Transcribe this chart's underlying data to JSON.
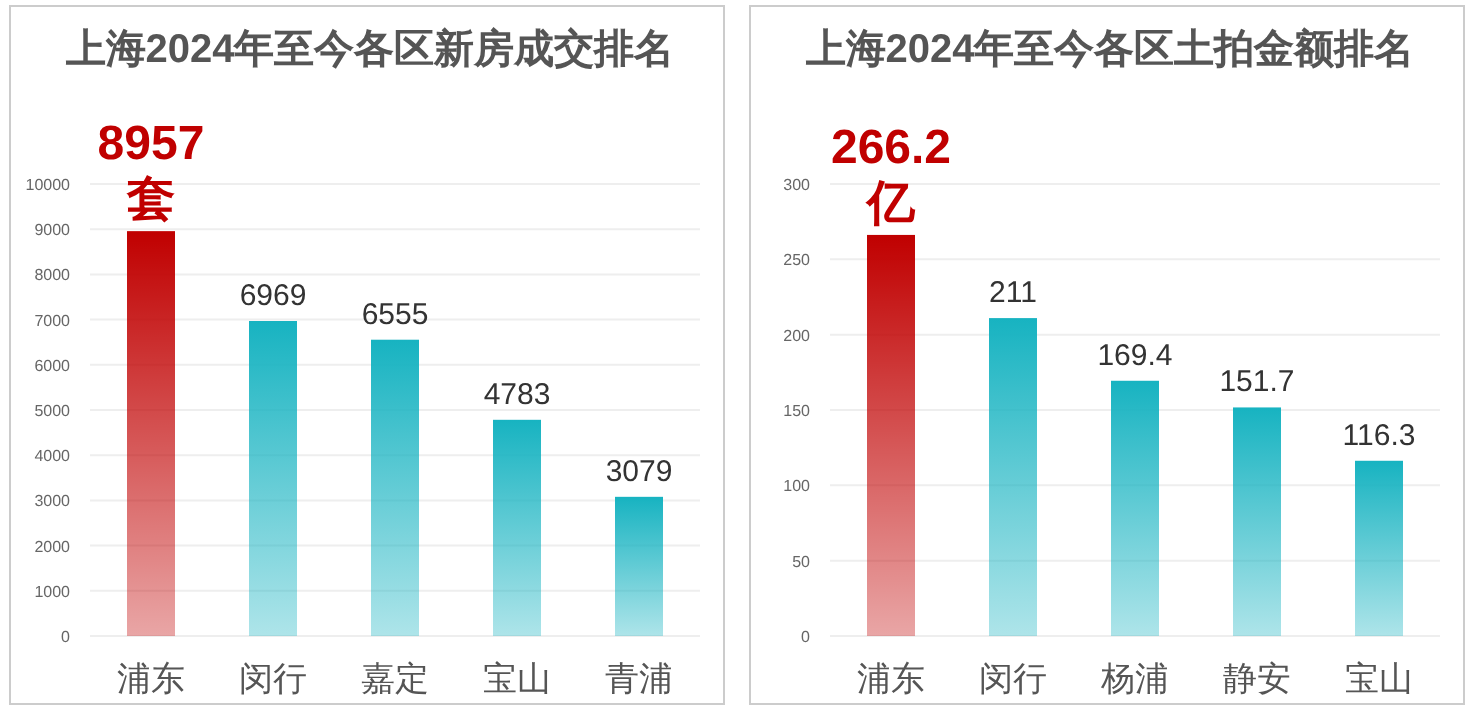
{
  "chart_data": [
    {
      "type": "bar",
      "title": "上海2024年至今各区新房成交排名",
      "categories": [
        "浦东",
        "闵行",
        "嘉定",
        "宝山",
        "青浦"
      ],
      "values": [
        8957,
        6969,
        6555,
        4783,
        3079
      ],
      "colors": [
        "#c00000",
        "#17b3c1",
        "#17b3c1",
        "#17b3c1",
        "#17b3c1"
      ],
      "value_labels": [
        "8957\n套",
        "6969",
        "6555",
        "4783",
        "3079"
      ],
      "ylim": [
        0,
        10000
      ],
      "yticks": [
        0,
        1000,
        2000,
        3000,
        4000,
        5000,
        6000,
        7000,
        8000,
        9000,
        10000
      ],
      "grid": "y"
    },
    {
      "type": "bar",
      "title": "上海2024年至今各区土拍金额排名",
      "categories": [
        "浦东",
        "闵行",
        "杨浦",
        "静安",
        "宝山"
      ],
      "values": [
        266.2,
        211,
        169.4,
        151.7,
        116.3
      ],
      "colors": [
        "#c00000",
        "#17b3c1",
        "#17b3c1",
        "#17b3c1",
        "#17b3c1"
      ],
      "value_labels": [
        "266.2\n亿",
        "211",
        "169.4",
        "151.7",
        "116.3"
      ],
      "ylim": [
        0,
        300
      ],
      "yticks": [
        0,
        50,
        100,
        150,
        200,
        250,
        300
      ],
      "grid": "y"
    }
  ]
}
